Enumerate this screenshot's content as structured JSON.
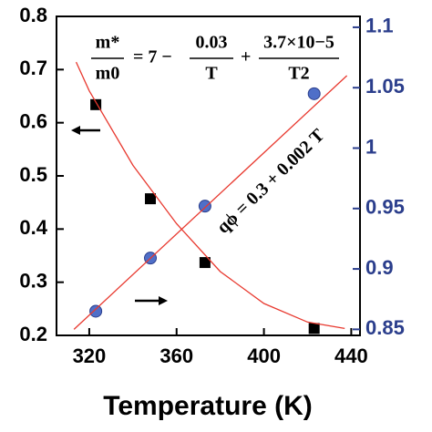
{
  "chart_data": {
    "type": "scatter",
    "x_label": "Temperature (K)",
    "xlim": [
      305,
      444
    ],
    "xticks": [
      320,
      360,
      400,
      440
    ],
    "ylim": [
      0.2,
      0.8
    ],
    "yticks": [
      0.2,
      0.3,
      0.4,
      0.5,
      0.6,
      0.7,
      0.8
    ],
    "y2lim": [
      0.845,
      1.109
    ],
    "y2ticks": [
      0.85,
      0.9,
      0.95,
      1.0,
      1.05,
      1.1
    ],
    "y2_color": "#2b3e8c",
    "series": [
      {
        "x": [
          323,
          348,
          373,
          423
        ],
        "values": [
          0.634,
          0.457,
          0.337,
          0.213
        ],
        "color": "#000000",
        "marker": "square"
      },
      {
        "x": [
          323,
          348,
          373,
          423
        ],
        "values": [
          0.865,
          0.909,
          0.952,
          1.045
        ],
        "color": "#4f6fc8",
        "marker": "circle",
        "axis": "y2"
      },
      {
        "x": [
          314,
          320,
          340,
          360,
          380,
          400,
          420,
          437
        ],
        "values": [
          0.714,
          0.66,
          0.52,
          0.41,
          0.32,
          0.26,
          0.225,
          0.213
        ],
        "color": "#e8392f",
        "marker": "line"
      },
      {
        "x": [
          313,
          438
        ],
        "values": [
          0.85,
          1.06
        ],
        "color": "#e8392f",
        "marker": "line",
        "axis": "y2"
      }
    ],
    "annotations": {
      "m_star": "m*",
      "m0": "m0",
      "equals": "= 7 −",
      "a": "0.03",
      "t1": "T",
      "plus": "+",
      "b": "3.7×10−5",
      "t2": "T2",
      "line_eq": "qϕ = 0.3 + 0.002 T"
    }
  }
}
